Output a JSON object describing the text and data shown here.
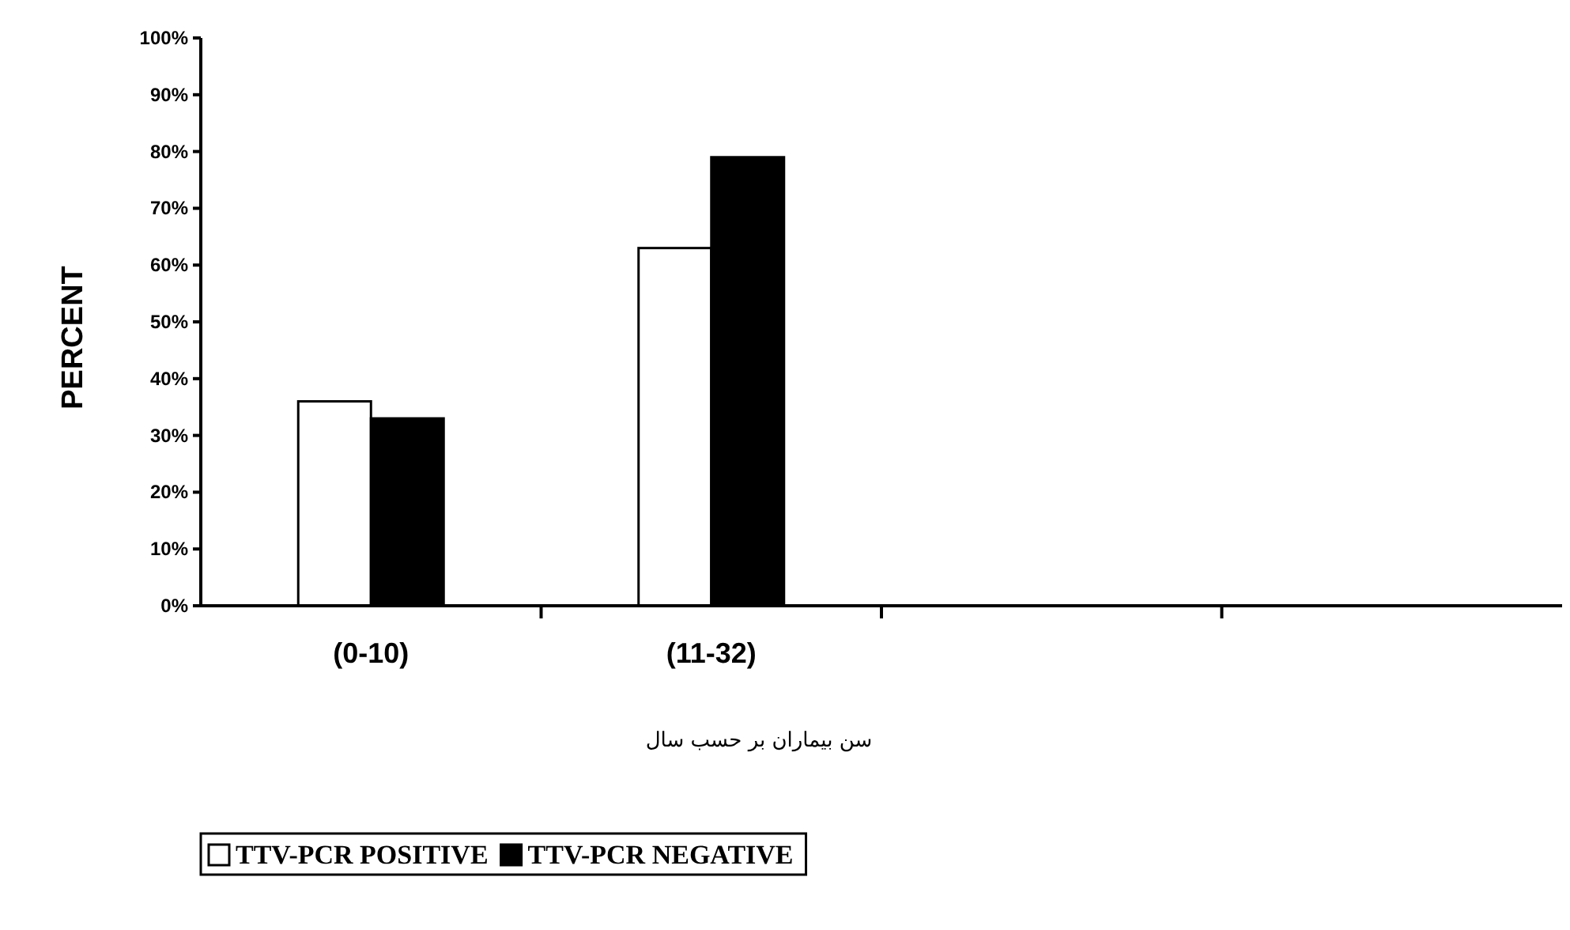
{
  "chart_data": {
    "type": "bar",
    "xlabel": "سن بیماران بر حسب سال",
    "ylabel": "PERCENT",
    "categories": [
      "(0-10)",
      "(11-32)",
      null,
      null
    ],
    "series": [
      {
        "name": "TTV-PCR POSITIVE",
        "color": "#ffffff",
        "values": [
          36,
          63,
          0,
          0
        ]
      },
      {
        "name": "TTV-PCR NEGATIVE",
        "color": "#000000",
        "values": [
          33,
          79,
          0,
          0
        ]
      }
    ],
    "ylim": [
      0,
      100
    ],
    "yticks": [
      {
        "value": 0,
        "label": "0%"
      },
      {
        "value": 10,
        "label": "10%"
      },
      {
        "value": 20,
        "label": "20%"
      },
      {
        "value": 30,
        "label": "30%"
      },
      {
        "value": 40,
        "label": "40%"
      },
      {
        "value": 50,
        "label": "50%"
      },
      {
        "value": 60,
        "label": "60%"
      },
      {
        "value": 70,
        "label": "70%"
      },
      {
        "value": 80,
        "label": "80%"
      },
      {
        "value": 90,
        "label": "90%"
      },
      {
        "value": 100,
        "label": "100%"
      }
    ],
    "grid": false,
    "legend": "bottom"
  }
}
